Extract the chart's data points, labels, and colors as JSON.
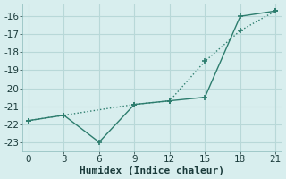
{
  "line1_x": [
    0,
    3,
    6,
    9,
    12,
    15,
    18,
    21
  ],
  "line1_y": [
    -21.8,
    -21.5,
    -23.0,
    -20.9,
    -20.7,
    -20.5,
    -16.0,
    -15.7
  ],
  "line2_x": [
    0,
    3,
    9,
    12,
    15,
    18,
    21
  ],
  "line2_y": [
    -21.8,
    -21.5,
    -20.9,
    -20.7,
    -18.5,
    -16.8,
    -15.7
  ],
  "color": "#2d7d6e",
  "bg_color": "#d8eeee",
  "grid_color": "#b8d8d8",
  "xlabel": "Humidex (Indice chaleur)",
  "xlim": [
    -0.5,
    21.5
  ],
  "ylim": [
    -23.5,
    -15.3
  ],
  "xticks": [
    0,
    3,
    6,
    9,
    12,
    15,
    18,
    21
  ],
  "yticks": [
    -23,
    -22,
    -21,
    -20,
    -19,
    -18,
    -17,
    -16
  ],
  "xlabel_fontsize": 8,
  "tick_fontsize": 7.5
}
